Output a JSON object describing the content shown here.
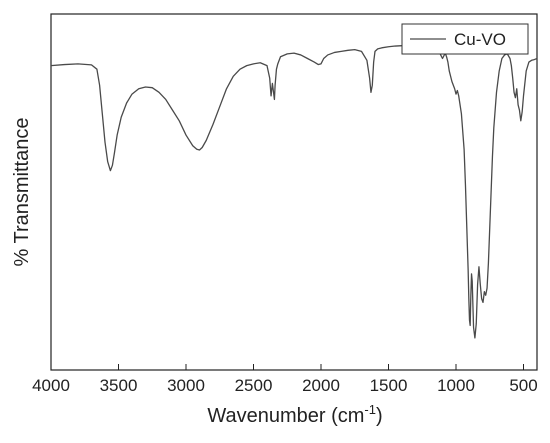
{
  "chart_data": {
    "type": "line",
    "title": "",
    "xlabel": "Wavenumber (cm",
    "xlabel_sup": "-1",
    "xlabel_suffix": ")",
    "ylabel": "% Transmittance",
    "xlim": [
      4000,
      400
    ],
    "x_reversed": true,
    "ylim": [
      0,
      100
    ],
    "y_ticks_shown": false,
    "x_ticks": [
      4000,
      3500,
      3000,
      2500,
      2000,
      1500,
      1000,
      500
    ],
    "x_tick_labels": [
      "4000",
      "3500",
      "3000",
      "2500",
      "2000",
      "1500",
      "1000",
      "500"
    ],
    "grid": false,
    "legend_position": "top-right",
    "line_color": "#4a4a4a",
    "series": [
      {
        "name": "Cu-VO",
        "x": [
          4000,
          3900,
          3800,
          3700,
          3660,
          3640,
          3620,
          3600,
          3580,
          3560,
          3545,
          3530,
          3510,
          3480,
          3440,
          3400,
          3350,
          3300,
          3250,
          3200,
          3150,
          3100,
          3050,
          3000,
          2950,
          2920,
          2900,
          2880,
          2850,
          2800,
          2750,
          2700,
          2650,
          2600,
          2550,
          2500,
          2450,
          2400,
          2380,
          2370,
          2360,
          2350,
          2345,
          2340,
          2330,
          2320,
          2300,
          2250,
          2200,
          2150,
          2100,
          2050,
          2020,
          2000,
          1980,
          1950,
          1900,
          1850,
          1800,
          1750,
          1700,
          1660,
          1640,
          1630,
          1620,
          1610,
          1600,
          1580,
          1550,
          1500,
          1450,
          1400,
          1350,
          1300,
          1250,
          1200,
          1180,
          1150,
          1120,
          1100,
          1080,
          1070,
          1060,
          1050,
          1030,
          1010,
          1000,
          990,
          980,
          960,
          940,
          930,
          920,
          910,
          905,
          900,
          895,
          890,
          885,
          880,
          870,
          860,
          850,
          840,
          830,
          820,
          810,
          800,
          790,
          780,
          770,
          760,
          750,
          740,
          730,
          720,
          700,
          680,
          660,
          640,
          620,
          600,
          590,
          580,
          570,
          560,
          550,
          540,
          530,
          520,
          510,
          500,
          480,
          460,
          440,
          420,
          400
        ],
        "y": [
          85.5,
          85.8,
          86.0,
          85.7,
          84.5,
          80.0,
          72.0,
          64.0,
          58.5,
          56.0,
          57.5,
          61.0,
          66.0,
          71.0,
          75.0,
          77.5,
          79.0,
          79.5,
          79.3,
          78.0,
          76.0,
          73.0,
          70.0,
          66.0,
          63.0,
          62.0,
          61.8,
          62.5,
          64.5,
          69.0,
          74.0,
          79.0,
          82.5,
          84.5,
          85.5,
          86.0,
          86.3,
          85.5,
          82.0,
          77.0,
          80.5,
          77.5,
          76.0,
          80.0,
          84.5,
          86.0,
          88.0,
          88.8,
          89.0,
          88.5,
          87.5,
          86.5,
          85.8,
          86.0,
          87.5,
          88.5,
          89.2,
          89.5,
          89.8,
          90.0,
          89.5,
          87.0,
          82.0,
          78.0,
          80.0,
          86.5,
          89.5,
          90.2,
          90.5,
          90.8,
          91.0,
          91.1,
          91.2,
          91.3,
          91.4,
          91.5,
          92.0,
          91.0,
          89.0,
          87.5,
          89.0,
          88.0,
          86.5,
          84.0,
          81.0,
          79.0,
          77.5,
          78.5,
          77.0,
          72.0,
          62.0,
          52.0,
          40.0,
          28.0,
          20.0,
          14.0,
          12.5,
          21.0,
          27.0,
          25.0,
          12.0,
          9.0,
          13.0,
          24.0,
          29.0,
          24.0,
          20.0,
          19.0,
          22.0,
          21.0,
          23.0,
          30.0,
          40.0,
          50.0,
          60.0,
          68.0,
          78.0,
          84.0,
          87.5,
          88.5,
          88.8,
          87.5,
          85.5,
          82.0,
          78.0,
          76.5,
          79.0,
          74.5,
          73.0,
          70.0,
          72.5,
          77.0,
          84.0,
          86.5,
          87.0,
          87.2,
          87.5
        ]
      }
    ]
  }
}
